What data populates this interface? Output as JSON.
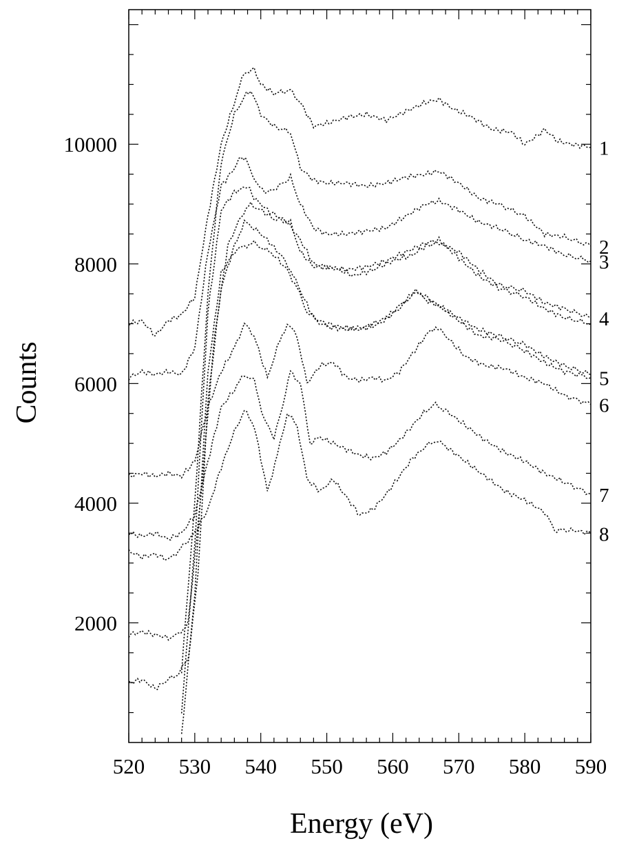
{
  "chart_data": {
    "type": "line",
    "title": "",
    "xlabel": "Energy (eV)",
    "ylabel": "Counts",
    "xlim": [
      520,
      590
    ],
    "ylim": [
      0,
      12250
    ],
    "xticks": [
      520,
      530,
      540,
      550,
      560,
      570,
      580,
      590
    ],
    "xtick_labels": [
      "520",
      "530",
      "540",
      "550",
      "560",
      "570",
      "580",
      "590"
    ],
    "yticks": [
      2000,
      4000,
      6000,
      8000,
      10000
    ],
    "ytick_labels": [
      "2000",
      "4000",
      "6000",
      "8000",
      "10000"
    ],
    "grid": false,
    "line_style": "dotted",
    "series_labels_position": "right",
    "series": [
      {
        "name": "1",
        "x": [
          520,
          522,
          524,
          526,
          528,
          530,
          532,
          534,
          536,
          537.5,
          539,
          540,
          542,
          544.5,
          546,
          548,
          550,
          553,
          556,
          559,
          562,
          565,
          567,
          569,
          572,
          575,
          578,
          580,
          582,
          583,
          585,
          587,
          590
        ],
        "y": [
          7000,
          7050,
          6800,
          7050,
          7150,
          7450,
          8800,
          10000,
          10700,
          11200,
          11250,
          11000,
          10850,
          10900,
          10700,
          10300,
          10350,
          10450,
          10500,
          10400,
          10550,
          10700,
          10750,
          10600,
          10450,
          10250,
          10200,
          10000,
          10150,
          10250,
          10050,
          10000,
          9950
        ]
      },
      {
        "name": "2",
        "x": [
          528,
          530,
          532,
          534,
          536,
          537.5,
          538.5,
          540,
          542,
          544.5,
          546,
          548,
          550,
          553,
          556,
          559,
          562,
          565,
          567,
          570,
          573,
          576,
          580,
          583,
          586,
          590
        ],
        "y": [
          1200,
          4000,
          7500,
          9700,
          10500,
          10800,
          10900,
          10500,
          10300,
          10200,
          9600,
          9400,
          9350,
          9350,
          9300,
          9350,
          9450,
          9500,
          9550,
          9350,
          9100,
          9000,
          8800,
          8500,
          8450,
          8300
        ]
      },
      {
        "name": "3",
        "x": [
          520,
          522,
          524,
          526,
          528,
          530,
          532,
          534,
          536,
          537,
          538,
          539.5,
          541,
          542,
          543.5,
          544.5,
          546,
          548,
          550,
          553,
          556,
          559,
          562,
          565,
          567,
          570,
          573,
          576,
          580,
          583,
          586,
          590
        ],
        "y": [
          6100,
          6200,
          6150,
          6200,
          6150,
          6600,
          8200,
          9300,
          9600,
          9800,
          9700,
          9300,
          9200,
          9250,
          9350,
          9450,
          9000,
          8600,
          8500,
          8500,
          8550,
          8600,
          8800,
          9000,
          9050,
          8900,
          8700,
          8600,
          8400,
          8300,
          8150,
          8050
        ]
      },
      {
        "name": "4",
        "x": [
          528,
          530,
          532,
          534,
          536,
          537,
          538,
          539,
          541,
          544,
          546,
          548,
          550,
          552,
          554,
          557,
          560,
          563,
          565,
          567,
          570,
          573,
          576,
          580,
          583,
          586,
          590
        ],
        "y": [
          500,
          3300,
          7200,
          8900,
          9200,
          9250,
          9300,
          9100,
          8900,
          8700,
          8400,
          8000,
          7950,
          7900,
          7800,
          7900,
          8050,
          8150,
          8300,
          8350,
          8200,
          7900,
          7650,
          7550,
          7350,
          7250,
          7100
        ]
      },
      {
        "name": "5",
        "x": [
          528,
          530,
          532,
          534,
          536,
          537.5,
          539,
          540.5,
          542,
          544,
          545.5,
          547,
          548.5,
          550,
          553,
          556,
          559,
          561,
          563.5,
          565,
          567,
          570,
          573,
          576,
          580,
          583,
          586,
          590
        ],
        "y": [
          100,
          2500,
          6200,
          7850,
          8200,
          8300,
          8350,
          8250,
          8150,
          7900,
          7600,
          7200,
          7050,
          6950,
          6900,
          6950,
          7100,
          7300,
          7550,
          7400,
          7300,
          7050,
          6800,
          6750,
          6550,
          6350,
          6200,
          6100
        ]
      },
      {
        "name": "6",
        "x": [
          520,
          522,
          524,
          526,
          528,
          530,
          532,
          534,
          536,
          537.5,
          539,
          541,
          542.5,
          544,
          545.5,
          547,
          549,
          551,
          553,
          555,
          557,
          559,
          561,
          563,
          565,
          566.5,
          568,
          571,
          574,
          577,
          580,
          583,
          586,
          590
        ],
        "y": [
          4450,
          4500,
          4450,
          4500,
          4450,
          4700,
          5600,
          6200,
          6600,
          7000,
          6800,
          6100,
          6600,
          7000,
          6800,
          6000,
          6300,
          6350,
          6100,
          6050,
          6100,
          6050,
          6200,
          6500,
          6800,
          6950,
          6800,
          6450,
          6300,
          6250,
          6100,
          6000,
          5800,
          5650
        ]
      },
      {
        "name": "7",
        "x": [
          520,
          522,
          524,
          526,
          528,
          530,
          532,
          534,
          536,
          537.5,
          539,
          540.5,
          542,
          543,
          544.5,
          546,
          547.5,
          549,
          551,
          553,
          555,
          557,
          559,
          561,
          563,
          565,
          566.5,
          568,
          571,
          574,
          577,
          580,
          583,
          586,
          590
        ],
        "y": [
          3500,
          3450,
          3500,
          3400,
          3500,
          3800,
          4700,
          5600,
          5900,
          6150,
          6050,
          5400,
          5100,
          5500,
          6200,
          6000,
          5000,
          5100,
          5000,
          4900,
          4800,
          4750,
          4850,
          5050,
          5300,
          5550,
          5650,
          5550,
          5300,
          5050,
          4850,
          4700,
          4500,
          4350,
          4150
        ]
      },
      {
        "name": "8",
        "x": [
          520,
          522,
          524,
          526,
          527.5,
          530,
          532,
          534,
          536,
          537.5,
          539,
          541,
          542.5,
          544,
          545.5,
          547,
          549,
          551,
          553,
          555,
          557,
          559,
          561,
          563,
          565,
          566.5,
          568,
          571,
          574,
          577,
          580,
          583,
          584.5,
          587,
          590
        ],
        "y": [
          3200,
          3100,
          3150,
          3050,
          3200,
          3500,
          3900,
          4600,
          5200,
          5550,
          5300,
          4200,
          4800,
          5500,
          5300,
          4400,
          4200,
          4400,
          4100,
          3800,
          3900,
          4150,
          4450,
          4750,
          4950,
          5050,
          4950,
          4700,
          4450,
          4200,
          4050,
          3850,
          3550,
          3550,
          3500
        ]
      },
      {
        "name": "",
        "x": [
          520,
          522,
          524,
          526,
          527.5,
          529,
          531,
          533,
          535,
          537,
          538.5,
          540,
          542,
          544.5,
          546,
          548,
          550,
          553,
          556,
          559,
          562,
          565,
          567,
          570,
          573,
          576,
          580,
          583,
          586,
          590
        ],
        "y": [
          1800,
          1850,
          1800,
          1750,
          1800,
          2000,
          4200,
          6800,
          8300,
          8800,
          9000,
          8900,
          8750,
          8700,
          8200,
          7950,
          7950,
          7900,
          7950,
          8050,
          8200,
          8350,
          8400,
          8100,
          7800,
          7600,
          7450,
          7250,
          7100,
          7000
        ]
      },
      {
        "name": "",
        "x": [
          520,
          522,
          524,
          526,
          527.5,
          529,
          530.5,
          532,
          534,
          536,
          537.5,
          539,
          541,
          543,
          544.5,
          546,
          548,
          550,
          552,
          555,
          558,
          561,
          563.5,
          565,
          567,
          570,
          573,
          576,
          580,
          583,
          586,
          590
        ],
        "y": [
          1000,
          1050,
          900,
          1050,
          1150,
          1400,
          2800,
          5700,
          7600,
          8300,
          8700,
          8600,
          8400,
          8150,
          7900,
          7550,
          7100,
          7000,
          6950,
          6900,
          7000,
          7250,
          7550,
          7450,
          7300,
          7100,
          6900,
          6800,
          6650,
          6450,
          6300,
          6150
        ]
      }
    ]
  }
}
